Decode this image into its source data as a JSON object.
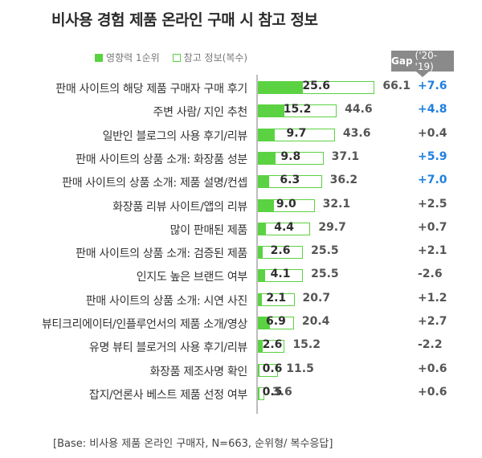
{
  "title": "비사용 경험 제품 온라인 구매 시 참고 정보",
  "legend": {
    "primary": "영향력 1순위",
    "secondary": "참고 정보(복수)"
  },
  "gap_header": {
    "label": "Gap",
    "period": "('20-'19)"
  },
  "footer": "[Base: 비사용 제품 온라인 구매자, N=663, 순위형/ 복수응답]",
  "colors": {
    "bar": "#5bd241",
    "gap_highlight": "#1f7fe0",
    "gap_normal": "#555555",
    "gap_header_bg": "#8a8a8a"
  },
  "chart_data": {
    "type": "bar",
    "orientation": "horizontal",
    "categories": [
      "판매 사이트의 해당 제품 구매자 구매 후기",
      "주변 사람/ 지인 추천",
      "일반인 블로그의 사용 후기/리뷰",
      "판매 사이트의 상품 소개: 화장품 성분",
      "판매 사이트의 상품 소개: 제품 설명/컨셉",
      "화장품 리뷰 사이트/앱의 리뷰",
      "많이 판매된 제품",
      "판매 사이트의 상품 소개: 검증된 제품",
      "인지도 높은 브랜드 여부",
      "판매 사이트의 상품 소개: 시연 사진",
      "뷰티크리에이터/인플루언서의 제품 소개/영상",
      "유명 뷰티 블로거의 사용 후기/리뷰",
      "화장품 제조사명 확인",
      "잡지/언론사 베스트 제품 선정 여부"
    ],
    "series": [
      {
        "name": "영향력 1순위",
        "values": [
          25.6,
          15.2,
          9.7,
          9.8,
          6.3,
          9.0,
          4.4,
          2.6,
          4.1,
          2.1,
          6.9,
          2.6,
          0.6,
          0.5
        ]
      },
      {
        "name": "참고 정보(복수)",
        "values": [
          66.1,
          44.6,
          43.6,
          37.1,
          36.2,
          32.1,
          29.7,
          25.5,
          25.5,
          20.7,
          20.4,
          15.2,
          11.5,
          3.6
        ]
      }
    ],
    "value_labels_primary": [
      "25.6",
      "15.2",
      "9.7",
      "9.8",
      "6.3",
      "9.0",
      "4.4",
      "2.6",
      "4.1",
      "2.1",
      "6.9",
      "2.6",
      "0.6",
      "0.5"
    ],
    "value_labels_secondary": [
      "66.1",
      "44.6",
      "43.6",
      "37.1",
      "36.2",
      "32.1",
      "29.7",
      "25.5",
      "25.5",
      "20.7",
      "20.4",
      "15.2",
      "11.5",
      "3.6"
    ],
    "gap": {
      "name": "Gap ('20-'19)",
      "labels": [
        "+7.6",
        "+4.8",
        "+0.4",
        "+5.9",
        "+7.0",
        "+2.5",
        "+0.7",
        "+2.1",
        "-2.6",
        "+1.2",
        "+2.7",
        "-2.2",
        "+0.6",
        "+0.6"
      ],
      "highlight": [
        true,
        true,
        false,
        true,
        true,
        false,
        false,
        false,
        false,
        false,
        false,
        false,
        false,
        false
      ]
    },
    "xlim": [
      0,
      100
    ],
    "grid": false,
    "legend_position": "top-left"
  }
}
